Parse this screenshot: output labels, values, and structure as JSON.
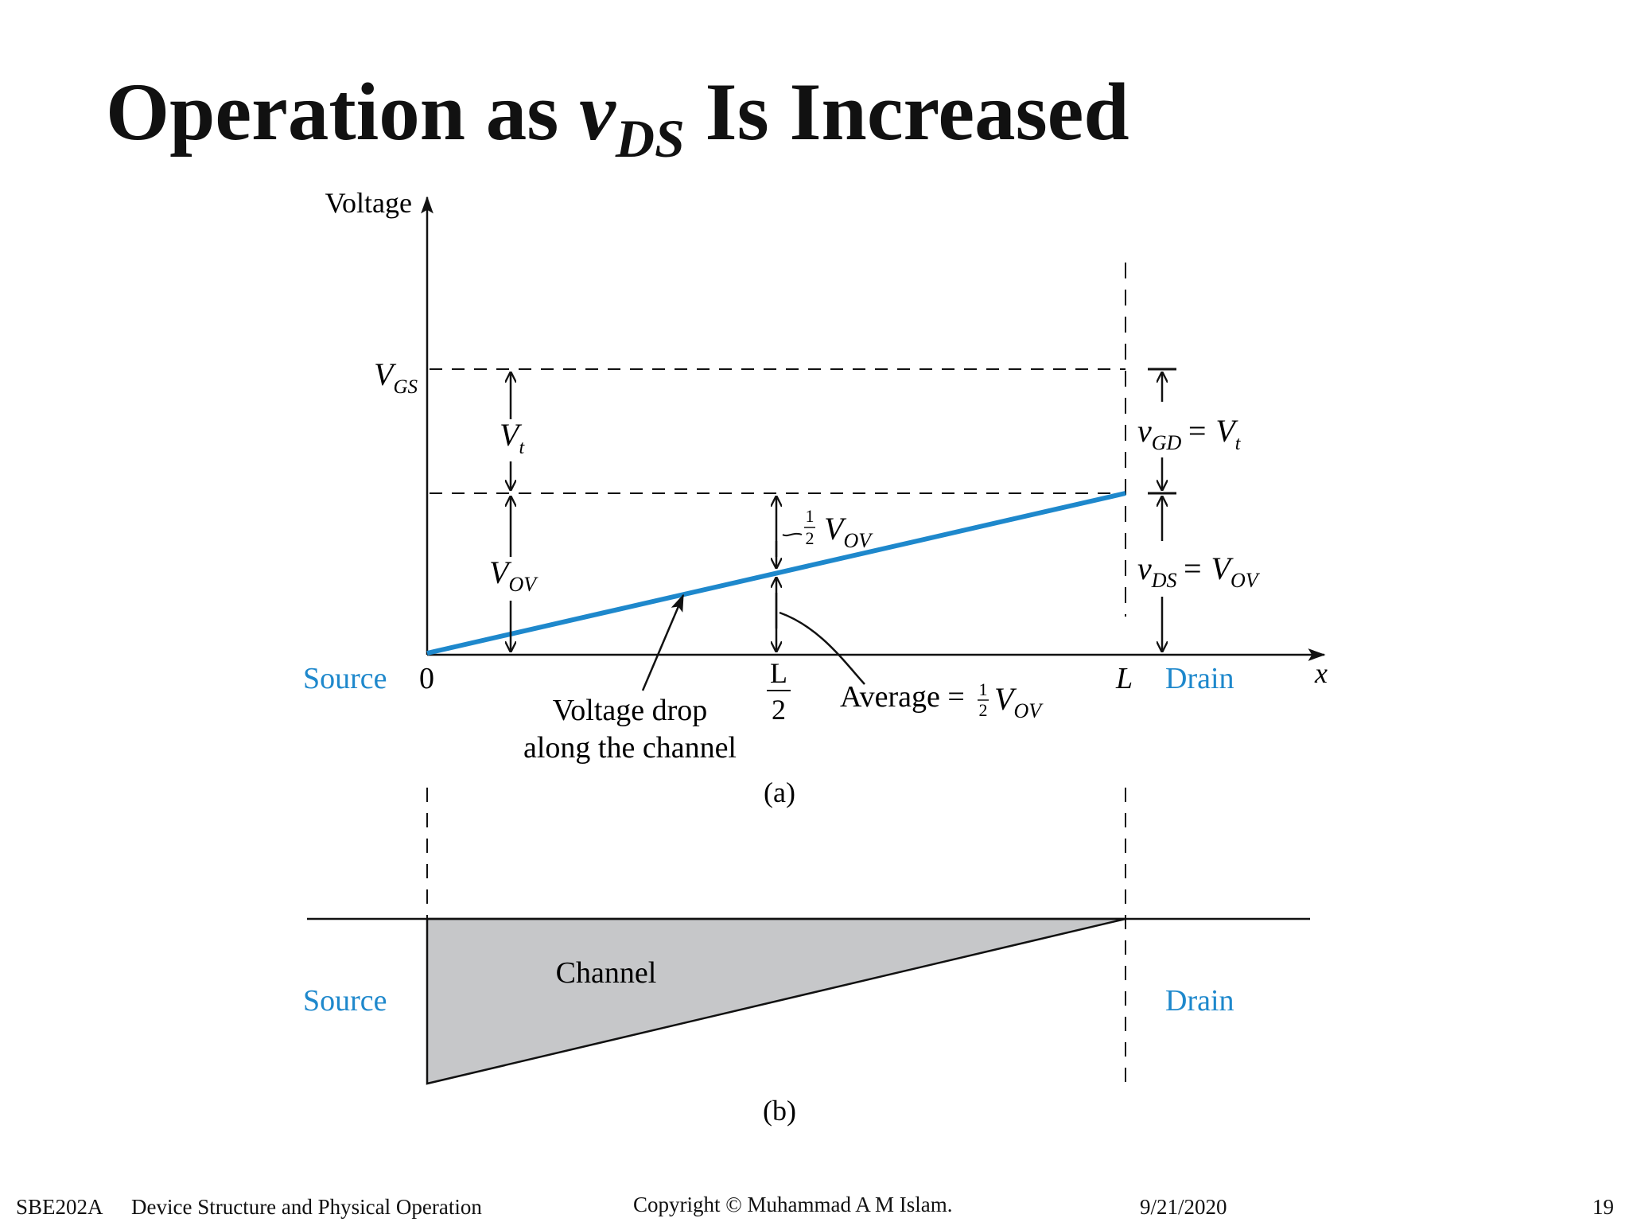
{
  "slide": {
    "title": {
      "pre": "Operation as ",
      "v": "v",
      "sub": "DS",
      "post": " Is Increased"
    },
    "footer": {
      "course": "SBE202A",
      "topic": "Device Structure and Physical Operation",
      "copyright": "Copyright © Muhammad A M Islam.",
      "date": "9/21/2020",
      "page": "19"
    }
  },
  "diagram": {
    "colors": {
      "accent": "#1e88cc",
      "channel_fill": "#c6c7c9",
      "line": "#111111"
    },
    "part_a": {
      "y_axis_label": "Voltage",
      "x_axis_label": "x",
      "source_label": "Source",
      "drain_label": "Drain",
      "origin_label": "0",
      "half_label_num": "L",
      "half_label_den": "2",
      "end_label": "L",
      "vgs_label": {
        "main": "V",
        "sub": "GS"
      },
      "vt_label": {
        "main": "V",
        "sub": "t"
      },
      "vov_label": {
        "main": "V",
        "sub": "OV"
      },
      "half_vov_label": {
        "main": "V",
        "sub": "OV"
      },
      "vgd_label": {
        "main": "v",
        "sub": "GD",
        "rhs": "= V",
        "rhs_sub": "t"
      },
      "vds_label": {
        "main": "v",
        "sub": "DS",
        "rhs": "= V",
        "rhs_sub": "OV"
      },
      "drop_label_line1": "Voltage drop",
      "drop_label_line2": "along the channel",
      "average_label": {
        "pre": "Average =",
        "main": "V",
        "sub": "OV"
      },
      "caption": "(a)"
    },
    "part_b": {
      "channel_label": "Channel",
      "source_label": "Source",
      "drain_label": "Drain",
      "caption": "(b)"
    }
  }
}
